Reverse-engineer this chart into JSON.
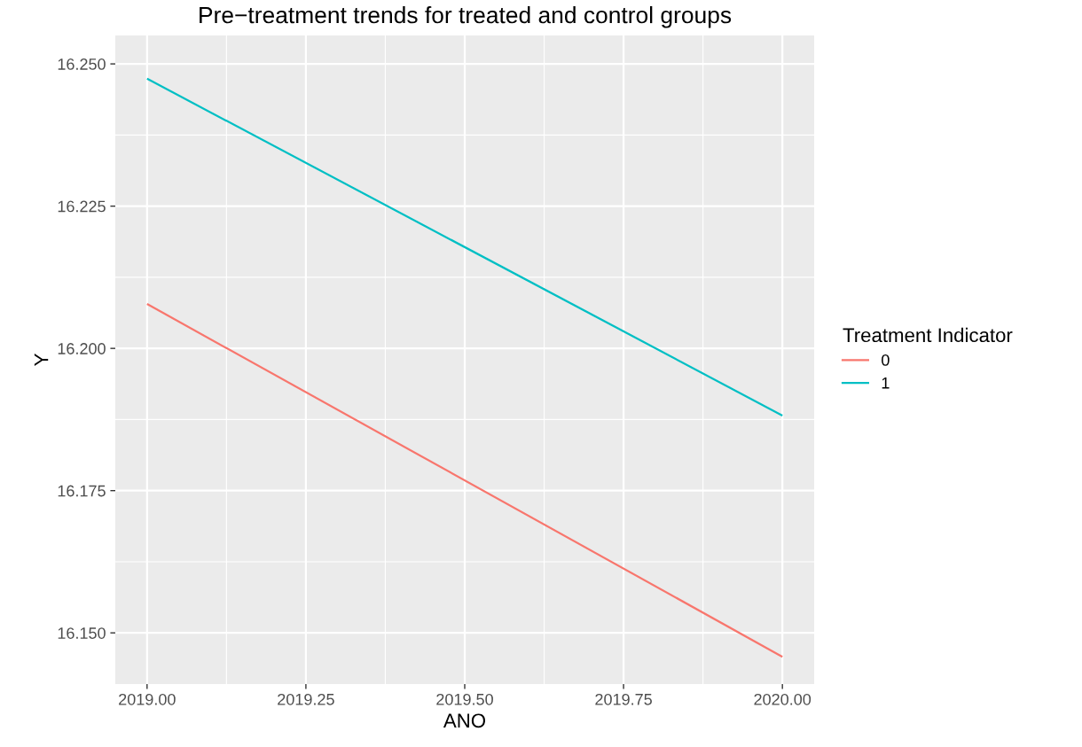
{
  "chart_data": {
    "type": "line",
    "title": "Pre−treatment trends for treated and control groups",
    "xlabel": "ANO",
    "ylabel": "Y",
    "legend_title": "Treatment Indicator",
    "x": [
      2019,
      2020
    ],
    "series": [
      {
        "name": "0",
        "color": "#f8766d",
        "values": [
          16.2078,
          16.1458
        ]
      },
      {
        "name": "1",
        "color": "#00bfc4",
        "values": [
          16.2474,
          16.1882
        ]
      }
    ],
    "xlim": [
      2018.95,
      2020.05
    ],
    "ylim": [
      16.141,
      16.255
    ],
    "xticks": [
      {
        "value": 2019,
        "label": "2019.00"
      },
      {
        "value": 2019.25,
        "label": "2019.25"
      },
      {
        "value": 2019.5,
        "label": "2019.50"
      },
      {
        "value": 2019.75,
        "label": "2019.75"
      },
      {
        "value": 2020,
        "label": "2020.00"
      }
    ],
    "yticks": [
      {
        "value": 16.15,
        "label": "16.150"
      },
      {
        "value": 16.175,
        "label": "16.175"
      },
      {
        "value": 16.2,
        "label": "16.200"
      },
      {
        "value": 16.225,
        "label": "16.225"
      },
      {
        "value": 16.25,
        "label": "16.250"
      }
    ],
    "grid": true,
    "legend": "right",
    "marker": "none",
    "line_style": "solid"
  }
}
